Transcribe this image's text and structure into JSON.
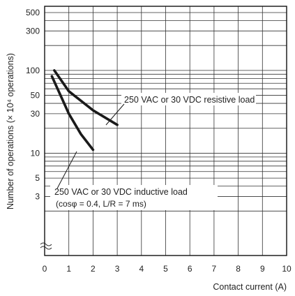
{
  "chart_data": {
    "type": "line",
    "xlabel": "Contact current (A)",
    "ylabel": "Number of operations (× 10⁴ operations)",
    "xlim": [
      0,
      10
    ],
    "ylim": [
      1,
      500
    ],
    "yscale": "log",
    "x_ticks": [
      "0",
      "1",
      "2",
      "3",
      "4",
      "5",
      "6",
      "7",
      "8",
      "9",
      "10"
    ],
    "y_ticks": [
      {
        "value": 500,
        "label": "500"
      },
      {
        "value": 300,
        "label": "300"
      },
      {
        "value": 100,
        "label": "100"
      },
      {
        "value": 50,
        "label": "50"
      },
      {
        "value": 30,
        "label": "30"
      },
      {
        "value": 10,
        "label": "10"
      },
      {
        "value": 5,
        "label": "5"
      },
      {
        "value": 3,
        "label": "3"
      }
    ],
    "axis_break": true,
    "grid": true,
    "series": [
      {
        "name": "250 VAC or 30 VDC resistive load",
        "x": [
          0.4,
          1,
          2,
          3
        ],
        "y": [
          100,
          56,
          33,
          22
        ]
      },
      {
        "name": "250 VAC or 30 VDC inductive load (cosφ = 0.4, L/R = 7 ms)",
        "x": [
          0.3,
          1,
          1.5,
          2
        ],
        "y": [
          85,
          30,
          17,
          11
        ]
      }
    ],
    "annotations": {
      "resistive": "250 VAC or 30 VDC resistive load",
      "inductive_line1": "250 VAC or 30 VDC inductive load",
      "inductive_line2": "(cosφ = 0.4, L/R = 7 ms)"
    }
  }
}
